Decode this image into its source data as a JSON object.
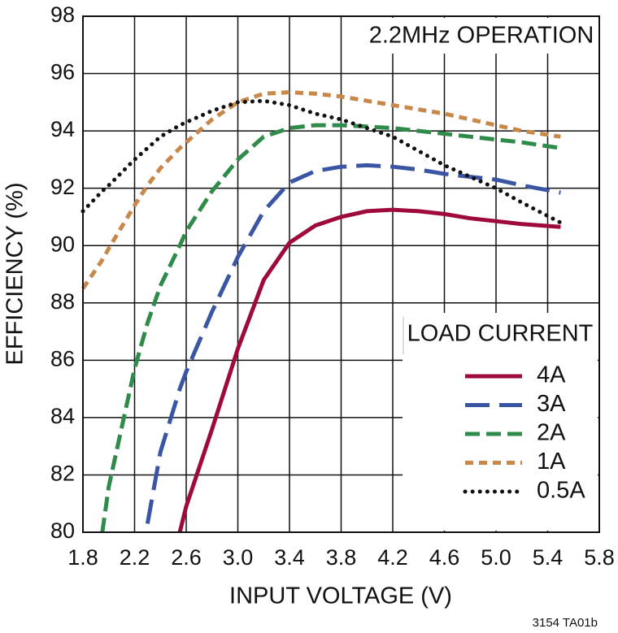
{
  "chart_data": {
    "type": "line",
    "annotation": "2.2MHz OPERATION",
    "legend_title": "LOAD CURRENT",
    "xlabel": "INPUT VOLTAGE (V)",
    "ylabel": "EFFICIENCY (%)",
    "footnote": "3154 TA01b",
    "x": [
      1.8,
      1.95,
      2.0,
      2.2,
      2.3,
      2.4,
      2.55,
      2.6,
      2.8,
      3.0,
      3.2,
      3.4,
      3.6,
      3.8,
      4.0,
      4.2,
      4.4,
      4.6,
      4.8,
      5.0,
      5.2,
      5.5
    ],
    "xlim": [
      1.8,
      5.8
    ],
    "xticks": [
      1.8,
      2.2,
      2.6,
      {
        "value": 3,
        "label": "3.0"
      },
      3.4,
      3.8,
      4.2,
      4.6,
      {
        "value": 5,
        "label": "5.0"
      },
      5.4,
      5.8
    ],
    "ylim": [
      80,
      98
    ],
    "yticks": [
      80,
      82,
      84,
      86,
      88,
      90,
      92,
      94,
      96,
      98
    ],
    "grid": true,
    "legend": "lower right",
    "series": [
      {
        "name": "4A",
        "color": "#9e0b3a",
        "dash": "solid",
        "values": [
          null,
          null,
          null,
          null,
          null,
          null,
          80.0,
          80.9,
          83.6,
          86.4,
          88.8,
          90.1,
          90.7,
          91.0,
          91.2,
          91.25,
          91.2,
          91.1,
          90.95,
          90.85,
          90.75,
          90.65
        ]
      },
      {
        "name": "3A",
        "color": "#3a55a4",
        "dash": "long-dash",
        "values": [
          null,
          null,
          null,
          null,
          80.3,
          82.8,
          85.0,
          85.6,
          87.7,
          89.6,
          91.2,
          92.2,
          92.6,
          92.75,
          92.8,
          92.75,
          92.65,
          92.5,
          92.4,
          92.3,
          92.1,
          91.85
        ]
      },
      {
        "name": "2A",
        "color": "#2e8b4a",
        "dash": "dash",
        "values": [
          null,
          80.0,
          81.6,
          85.7,
          87.3,
          88.6,
          90.0,
          90.5,
          91.9,
          93.0,
          93.8,
          94.1,
          94.2,
          94.2,
          94.15,
          94.1,
          94.0,
          93.9,
          93.8,
          93.7,
          93.6,
          93.4
        ]
      },
      {
        "name": "1A",
        "color": "#c8884a",
        "dash": "short-dash",
        "values": [
          88.5,
          89.5,
          89.9,
          91.4,
          92.1,
          92.7,
          93.4,
          93.6,
          94.4,
          95.0,
          95.3,
          95.35,
          95.3,
          95.2,
          95.05,
          94.9,
          94.75,
          94.6,
          94.4,
          94.2,
          94.0,
          93.8
        ]
      },
      {
        "name": "0.5A",
        "color": "#111111",
        "dash": "dotted",
        "values": [
          91.2,
          91.9,
          92.1,
          93.0,
          93.4,
          93.8,
          94.2,
          94.3,
          94.7,
          95.0,
          95.05,
          94.9,
          94.6,
          94.4,
          94.1,
          93.8,
          93.3,
          92.8,
          92.4,
          92.0,
          91.5,
          90.8
        ]
      }
    ]
  }
}
